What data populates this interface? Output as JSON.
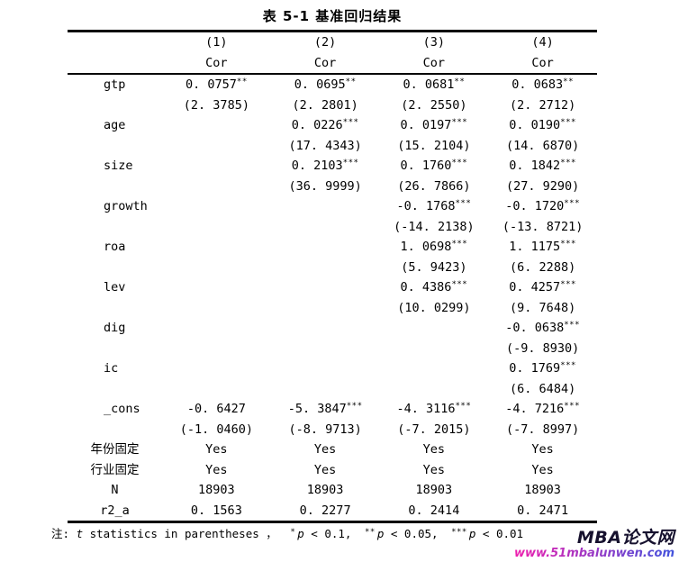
{
  "title": "表 5-1 基准回归结果",
  "header": {
    "numbers": [
      "(1)",
      "(2)",
      "(3)",
      "(4)"
    ],
    "models": [
      "Cor",
      "Cor",
      "Cor",
      "Cor"
    ]
  },
  "rows": [
    {
      "label": "gtp",
      "cells": [
        {
          "coef": "0. 0757",
          "stars": "**",
          "t": "(2. 3785)"
        },
        {
          "coef": "0. 0695",
          "stars": "**",
          "t": "(2. 2801)"
        },
        {
          "coef": "0. 0681",
          "stars": "**",
          "t": "(2. 2550)"
        },
        {
          "coef": "0. 0683",
          "stars": "**",
          "t": "(2. 2712)"
        }
      ]
    },
    {
      "label": "age",
      "cells": [
        null,
        {
          "coef": "0. 0226",
          "stars": "***",
          "t": "(17. 4343)"
        },
        {
          "coef": "0. 0197",
          "stars": "***",
          "t": "(15. 2104)"
        },
        {
          "coef": "0. 0190",
          "stars": "***",
          "t": "(14. 6870)"
        }
      ]
    },
    {
      "label": "size",
      "cells": [
        null,
        {
          "coef": "0. 2103",
          "stars": "***",
          "t": "(36. 9999)"
        },
        {
          "coef": "0. 1760",
          "stars": "***",
          "t": "(26. 7866)"
        },
        {
          "coef": "0. 1842",
          "stars": "***",
          "t": "(27. 9290)"
        }
      ]
    },
    {
      "label": "growth",
      "cells": [
        null,
        null,
        {
          "coef": "-0. 1768",
          "stars": "***",
          "t": "(-14. 2138)"
        },
        {
          "coef": "-0. 1720",
          "stars": "***",
          "t": "(-13. 8721)"
        }
      ]
    },
    {
      "label": "roa",
      "cells": [
        null,
        null,
        {
          "coef": "1. 0698",
          "stars": "***",
          "t": "(5. 9423)"
        },
        {
          "coef": "1. 1175",
          "stars": "***",
          "t": "(6. 2288)"
        }
      ]
    },
    {
      "label": "lev",
      "cells": [
        null,
        null,
        {
          "coef": "0. 4386",
          "stars": "***",
          "t": "(10. 0299)"
        },
        {
          "coef": "0. 4257",
          "stars": "***",
          "t": "(9. 7648)"
        }
      ]
    },
    {
      "label": "dig",
      "cells": [
        null,
        null,
        null,
        {
          "coef": "-0. 0638",
          "stars": "***",
          "t": "(-9. 8930)"
        }
      ]
    },
    {
      "label": "ic",
      "cells": [
        null,
        null,
        null,
        {
          "coef": "0. 1769",
          "stars": "***",
          "t": "(6. 6484)"
        }
      ]
    },
    {
      "label": "_cons",
      "cells": [
        {
          "coef": "-0. 6427",
          "stars": "",
          "t": "(-1. 0460)"
        },
        {
          "coef": "-5. 3847",
          "stars": "***",
          "t": "(-8. 9713)"
        },
        {
          "coef": "-4. 3116",
          "stars": "***",
          "t": "(-7. 2015)"
        },
        {
          "coef": "-4. 7216",
          "stars": "***",
          "t": "(-7. 8997)"
        }
      ]
    }
  ],
  "stats": [
    {
      "label": "年份固定",
      "values": [
        "Yes",
        "Yes",
        "Yes",
        "Yes"
      ]
    },
    {
      "label": "行业固定",
      "values": [
        "Yes",
        "Yes",
        "Yes",
        "Yes"
      ]
    },
    {
      "label": "N",
      "values": [
        "18903",
        "18903",
        "18903",
        "18903"
      ]
    },
    {
      "label": "r2_a",
      "values": [
        "0. 1563",
        "0. 2277",
        "0. 2414",
        "0. 2471"
      ]
    }
  ],
  "note": {
    "prefix": "注: ",
    "t": "t",
    "body": " statistics in parentheses ， ",
    "sigs": [
      {
        "stars": "*",
        "p": "p",
        "rest": " < 0.1, "
      },
      {
        "stars": "**",
        "p": "p",
        "rest": " < 0.05, "
      },
      {
        "stars": "***",
        "p": "p",
        "rest": " < 0.01"
      }
    ]
  },
  "watermark": {
    "brand": "MBA论文网",
    "url": "www.51mbalunwen.com",
    "brand_color": "#16112e",
    "url_gradient_start": "#ef1fae",
    "url_gradient_end": "#4153dd"
  }
}
